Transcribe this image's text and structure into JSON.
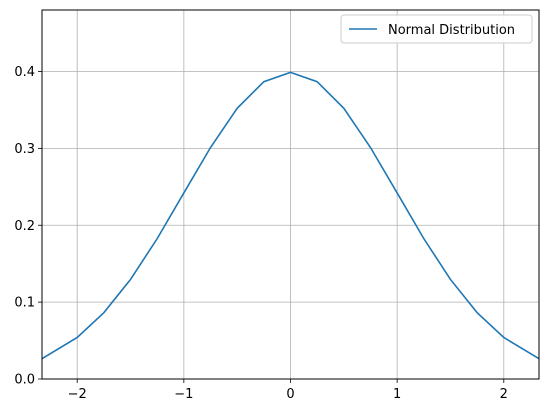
{
  "chart_data": {
    "type": "line",
    "title": "",
    "xlabel": "",
    "ylabel": "",
    "xlim": [
      -2.33,
      2.33
    ],
    "ylim": [
      0.0,
      0.48
    ],
    "x_ticks": [
      -2,
      -1,
      0,
      1,
      2
    ],
    "x_tick_labels": [
      "−2",
      "−1",
      "0",
      "1",
      "2"
    ],
    "y_ticks": [
      0.0,
      0.1,
      0.2,
      0.3,
      0.4
    ],
    "y_tick_labels": [
      "0.0",
      "0.1",
      "0.2",
      "0.3",
      "0.4"
    ],
    "grid": true,
    "legend": {
      "position": "top-right",
      "entries": [
        "Normal Distribution"
      ]
    },
    "series": [
      {
        "name": "Normal Distribution",
        "color": "#1f77b4",
        "x": [
          -2.33,
          -2.0,
          -1.75,
          -1.5,
          -1.25,
          -1.0,
          -0.75,
          -0.5,
          -0.25,
          0.0,
          0.25,
          0.5,
          0.75,
          1.0,
          1.25,
          1.5,
          1.75,
          2.0,
          2.33
        ],
        "y": [
          0.0264,
          0.054,
          0.0863,
          0.1295,
          0.1826,
          0.242,
          0.3011,
          0.3521,
          0.3867,
          0.3989,
          0.3867,
          0.3521,
          0.3011,
          0.242,
          0.1826,
          0.1295,
          0.0863,
          0.054,
          0.0264
        ]
      }
    ]
  }
}
